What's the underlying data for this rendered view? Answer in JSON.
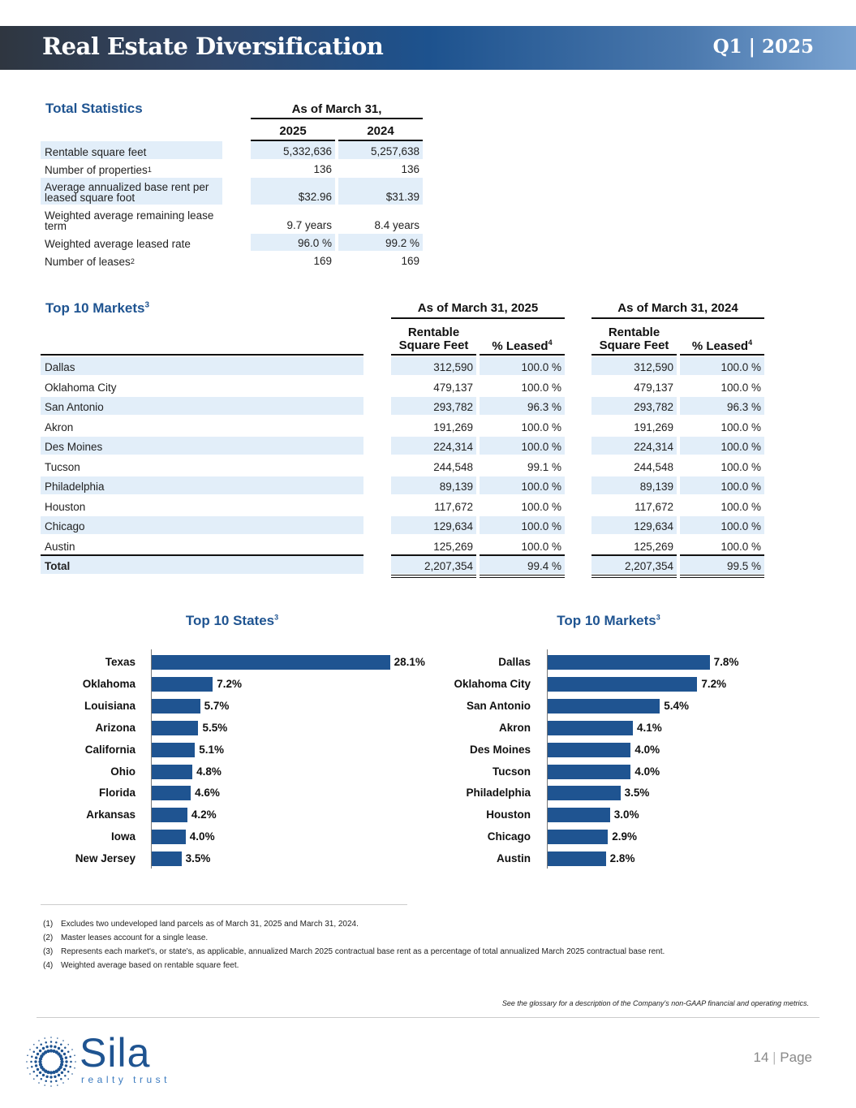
{
  "header": {
    "title": "Real Estate Diversification",
    "period": "Q1 | 2025"
  },
  "total_statistics": {
    "title": "Total Statistics",
    "group_header": "As of March 31,",
    "columns": [
      "2025",
      "2024"
    ],
    "rows": [
      {
        "label": "Rentable square feet",
        "sup": "",
        "values": [
          "5,332,636",
          "5,257,638"
        ]
      },
      {
        "label": "Number of properties",
        "sup": "1",
        "values": [
          "136",
          "136"
        ]
      },
      {
        "label": "Average annualized base rent per leased square foot",
        "sup": "",
        "values": [
          "$32.96",
          "$31.39"
        ]
      },
      {
        "label": "Weighted average remaining lease term",
        "sup": "",
        "values": [
          "9.7 years",
          "8.4 years"
        ]
      },
      {
        "label": "Weighted average leased rate",
        "sup": "",
        "values": [
          "96.0 %",
          "99.2 %"
        ]
      },
      {
        "label": "Number of leases",
        "sup": "2",
        "values": [
          "169",
          "169"
        ]
      }
    ]
  },
  "top_markets_table": {
    "title": "Top 10 Markets",
    "title_sup": "3",
    "groups": [
      "As of March 31, 2025",
      "As of March 31, 2024"
    ],
    "col_rsf": "Rentable Square Feet",
    "col_leased": "% Leased",
    "col_leased_sup": "4",
    "rows": [
      {
        "market": "Dallas",
        "v": [
          "312,590",
          "100.0 %",
          "312,590",
          "100.0 %"
        ]
      },
      {
        "market": "Oklahoma City",
        "v": [
          "479,137",
          "100.0 %",
          "479,137",
          "100.0 %"
        ]
      },
      {
        "market": "San Antonio",
        "v": [
          "293,782",
          "96.3 %",
          "293,782",
          "96.3 %"
        ]
      },
      {
        "market": "Akron",
        "v": [
          "191,269",
          "100.0 %",
          "191,269",
          "100.0 %"
        ]
      },
      {
        "market": "Des Moines",
        "v": [
          "224,314",
          "100.0 %",
          "224,314",
          "100.0 %"
        ]
      },
      {
        "market": "Tucson",
        "v": [
          "244,548",
          "99.1 %",
          "244,548",
          "100.0 %"
        ]
      },
      {
        "market": "Philadelphia",
        "v": [
          "89,139",
          "100.0 %",
          "89,139",
          "100.0 %"
        ]
      },
      {
        "market": "Houston",
        "v": [
          "117,672",
          "100.0 %",
          "117,672",
          "100.0 %"
        ]
      },
      {
        "market": "Chicago",
        "v": [
          "129,634",
          "100.0 %",
          "129,634",
          "100.0 %"
        ]
      },
      {
        "market": "Austin",
        "v": [
          "125,269",
          "100.0 %",
          "125,269",
          "100.0 %"
        ]
      }
    ],
    "total": {
      "market": "Total",
      "v": [
        "2,207,354",
        "99.4 %",
        "2,207,354",
        "99.5 %"
      ]
    }
  },
  "chart_data": [
    {
      "type": "bar",
      "orientation": "horizontal",
      "title": "Top 10 States",
      "title_sup": "3",
      "color": "#1f5491",
      "categories": [
        "Texas",
        "Oklahoma",
        "Louisiana",
        "Arizona",
        "California",
        "Ohio",
        "Florida",
        "Arkansas",
        "Iowa",
        "New Jersey"
      ],
      "values": [
        28.1,
        7.2,
        5.7,
        5.5,
        5.1,
        4.8,
        4.6,
        4.2,
        4.0,
        3.5
      ],
      "labels": [
        "28.1%",
        "7.2%",
        "5.7%",
        "5.5%",
        "5.1%",
        "4.8%",
        "4.6%",
        "4.2%",
        "4.0%",
        "3.5%"
      ]
    },
    {
      "type": "bar",
      "orientation": "horizontal",
      "title": "Top 10 Markets",
      "title_sup": "3",
      "color": "#1f5491",
      "categories": [
        "Dallas",
        "Oklahoma City",
        "San Antonio",
        "Akron",
        "Des Moines",
        "Tucson",
        "Philadelphia",
        "Houston",
        "Chicago",
        "Austin"
      ],
      "values": [
        7.8,
        7.2,
        5.4,
        4.1,
        4.0,
        4.0,
        3.5,
        3.0,
        2.9,
        2.8
      ],
      "labels": [
        "7.8%",
        "7.2%",
        "5.4%",
        "4.1%",
        "4.0%",
        "4.0%",
        "3.5%",
        "3.0%",
        "2.9%",
        "2.8%"
      ]
    }
  ],
  "footnotes": [
    {
      "n": "(1)",
      "text": "Excludes two undeveloped land parcels as of March 31, 2025 and March 31, 2024."
    },
    {
      "n": "(2)",
      "text": "Master leases account for a single lease."
    },
    {
      "n": "(3)",
      "text": "Represents each market's, or state's, as applicable, annualized March 2025 contractual base rent as a percentage of total annualized March 2025 contractual base rent."
    },
    {
      "n": "(4)",
      "text": "Weighted average based on rentable square feet."
    }
  ],
  "glossary_note": "See the glossary for a description of the Company's non-GAAP financial and operating metrics.",
  "footer": {
    "logo_text": "Sila",
    "logo_sub": "realty trust",
    "page_number": "14",
    "page_label": "Page"
  }
}
